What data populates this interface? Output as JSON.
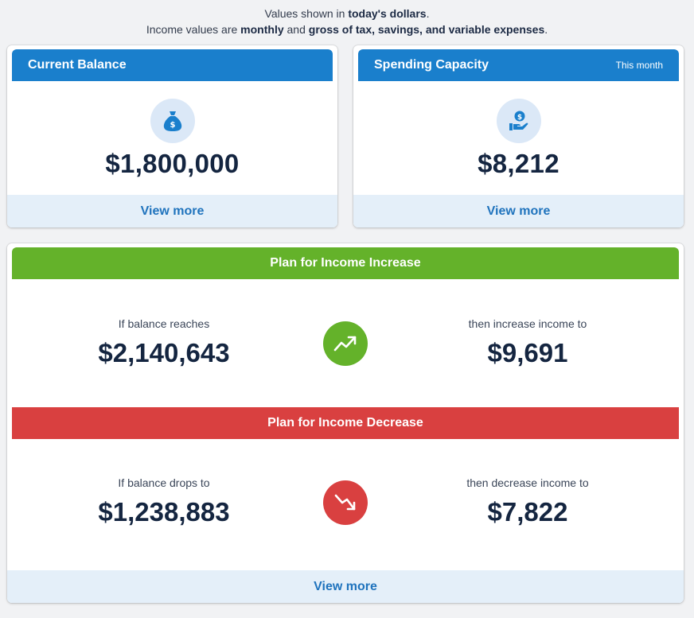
{
  "note": {
    "line1_prefix": "Values shown in ",
    "line1_bold": "today's dollars",
    "line1_suffix": ".",
    "line2_prefix": "Income values are ",
    "line2_bold1": "monthly",
    "line2_mid": " and ",
    "line2_bold2": "gross of tax, savings, and variable expenses",
    "line2_suffix": "."
  },
  "current_balance": {
    "title": "Current Balance",
    "icon": "money-bag-icon",
    "value": "$1,800,000",
    "view_more": "View more"
  },
  "spending_capacity": {
    "title": "Spending Capacity",
    "tag": "This month",
    "icon": "hand-coin-icon",
    "value": "$8,212",
    "view_more": "View more"
  },
  "plan": {
    "increase": {
      "title": "Plan for Income Increase",
      "left_label": "If balance reaches",
      "left_value": "$2,140,643",
      "right_label": "then increase income to",
      "right_value": "$9,691",
      "icon": "trend-up-icon",
      "color": "#64b22a"
    },
    "decrease": {
      "title": "Plan for Income Decrease",
      "left_label": "If balance drops to",
      "left_value": "$1,238,883",
      "right_label": "then decrease income to",
      "right_value": "$7,822",
      "icon": "trend-down-icon",
      "color": "#d94040"
    },
    "view_more": "View more"
  },
  "colors": {
    "primary": "#1a7fcc",
    "link": "#1f73bd",
    "icon_bg": "#dbe8f7"
  }
}
